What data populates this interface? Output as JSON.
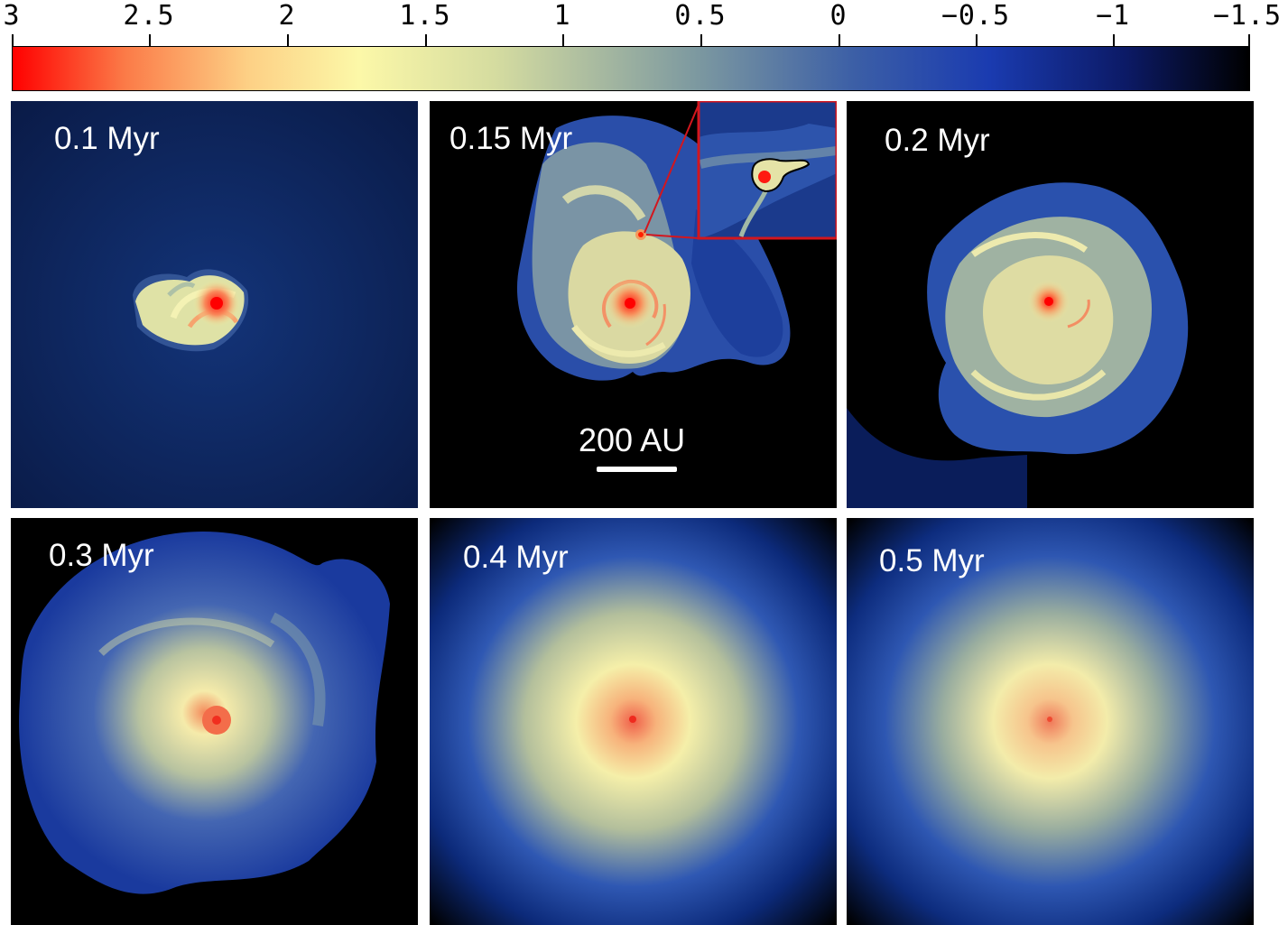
{
  "colorbar": {
    "ticks": [
      "3",
      "2.5",
      "2",
      "1.5",
      "1",
      "0.5",
      "0",
      "−0.5",
      "−1",
      "−1.5"
    ]
  },
  "panels": [
    {
      "label": "0.1 Myr"
    },
    {
      "label": "0.15 Myr"
    },
    {
      "label": "0.2 Myr"
    },
    {
      "label": "0.3 Myr"
    },
    {
      "label": "0.4 Myr"
    },
    {
      "label": "0.5 Myr"
    }
  ],
  "scalebar": {
    "label": "200 AU"
  },
  "colors": {
    "inset_border": "#d3161e",
    "background_panel1": "#0c2152"
  }
}
